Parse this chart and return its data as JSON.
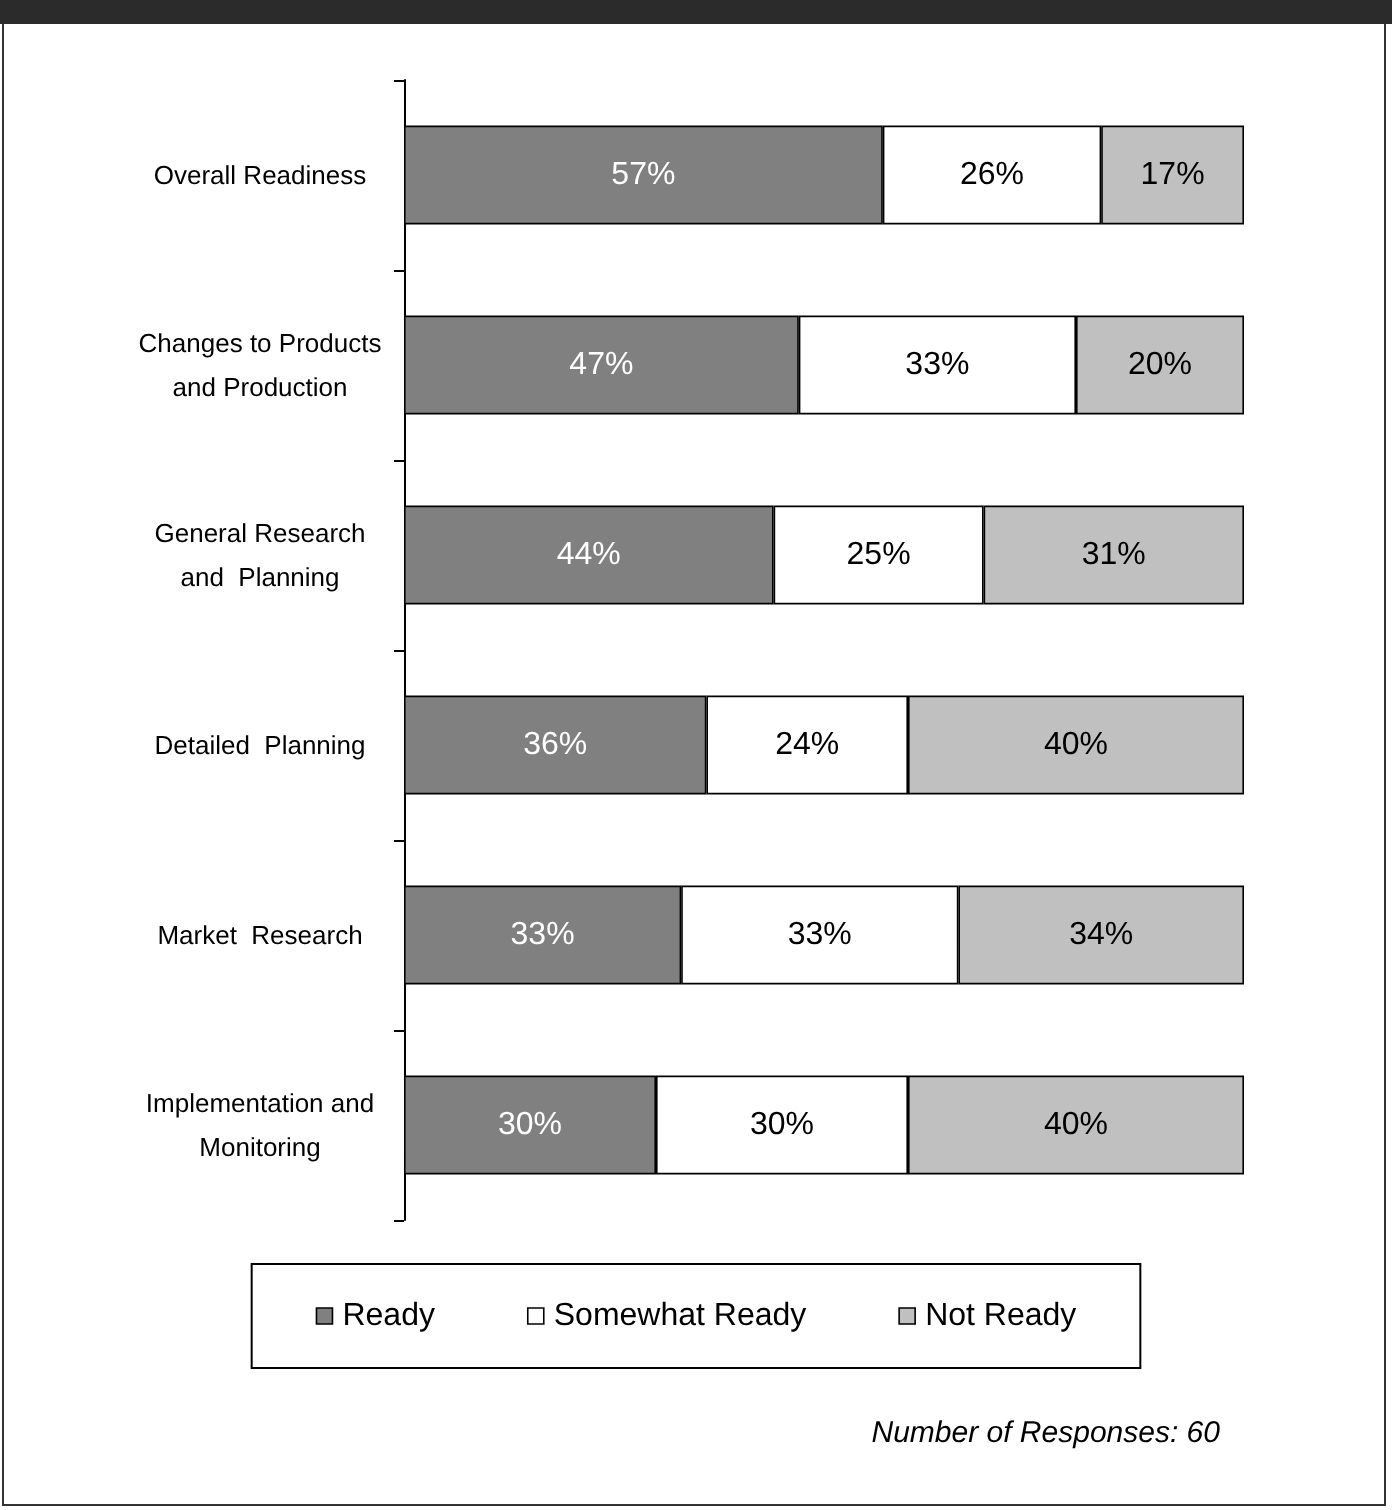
{
  "chart_data": {
    "type": "bar",
    "orientation": "horizontal",
    "stacked": true,
    "categories": [
      "Overall Readiness",
      "Changes to Products\nand Production",
      "General Research\nand  Planning",
      "Detailed  Planning",
      "Market  Research",
      "Implementation and\nMonitoring"
    ],
    "series": [
      {
        "name": "Ready",
        "color": "#808080",
        "values": [
          57,
          47,
          44,
          36,
          33,
          30
        ],
        "value_labels": [
          "57%",
          "47%",
          "44%",
          "36%",
          "33%",
          "30%"
        ]
      },
      {
        "name": "Somewhat Ready",
        "color": "#ffffff",
        "values": [
          26,
          33,
          25,
          24,
          33,
          30
        ],
        "value_labels": [
          "26%",
          "33%",
          "25%",
          "24%",
          "33%",
          "30%"
        ]
      },
      {
        "name": "Not Ready",
        "color": "#c0c0c0",
        "values": [
          17,
          20,
          31,
          40,
          34,
          40
        ],
        "value_labels": [
          "17%",
          "20%",
          "31%",
          "40%",
          "34%",
          "40%"
        ]
      }
    ],
    "tick_labels": "y",
    "legend": "bottom",
    "annotations": [
      "Number of Responses: 60"
    ]
  }
}
